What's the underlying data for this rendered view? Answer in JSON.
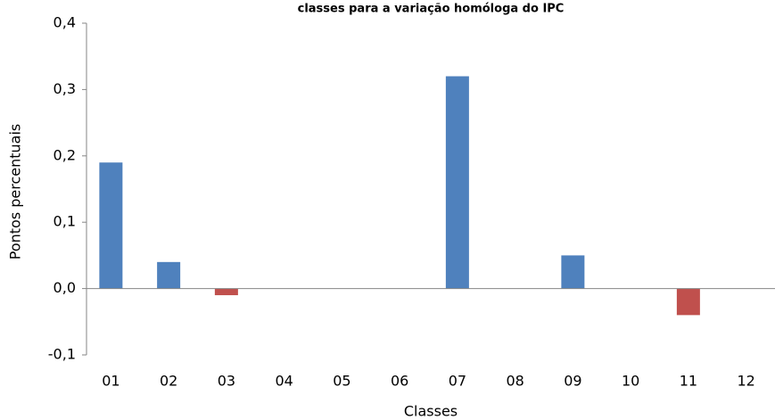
{
  "chart_data": {
    "type": "bar",
    "title": "classes para a variação homóloga do IPC",
    "x_label": "Classes",
    "y_label": "Pontos percentuais",
    "categories": [
      "01",
      "02",
      "03",
      "04",
      "05",
      "06",
      "07",
      "08",
      "09",
      "10",
      "11",
      "12"
    ],
    "values": [
      0.19,
      0.04,
      -0.01,
      0,
      0,
      0,
      0.32,
      0,
      0.05,
      0,
      -0.04,
      0
    ],
    "colors": [
      "#4f81bd",
      "#4f81bd",
      "#c0504d",
      "#4f81bd",
      "#4f81bd",
      "#4f81bd",
      "#4f81bd",
      "#4f81bd",
      "#4f81bd",
      "#4f81bd",
      "#c0504d",
      "#4f81bd"
    ],
    "ylim": [
      -0.1,
      0.4
    ],
    "yticks": [
      {
        "value": -0.1,
        "label": "-0,1"
      },
      {
        "value": 0,
        "label": "0,0"
      },
      {
        "value": 0.1,
        "label": "0,1"
      },
      {
        "value": 0.2,
        "label": "0,2"
      },
      {
        "value": 0.3,
        "label": "0,3"
      },
      {
        "value": 0.4,
        "label": "0,4"
      }
    ],
    "grid": false
  }
}
